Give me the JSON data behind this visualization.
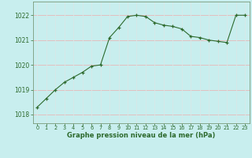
{
  "x": [
    0,
    1,
    2,
    3,
    4,
    5,
    6,
    7,
    8,
    9,
    10,
    11,
    12,
    13,
    14,
    15,
    16,
    17,
    18,
    19,
    20,
    21,
    22,
    23
  ],
  "y": [
    1018.3,
    1018.65,
    1019.0,
    1019.3,
    1019.5,
    1019.7,
    1019.95,
    1020.0,
    1021.1,
    1021.5,
    1021.95,
    1022.0,
    1021.95,
    1021.7,
    1021.6,
    1021.55,
    1021.45,
    1021.15,
    1021.1,
    1021.0,
    1020.95,
    1020.9,
    1022.0,
    1022.0
  ],
  "line_color": "#2d6a2d",
  "marker_color": "#2d6a2d",
  "bg_color": "#c8eeee",
  "grid_color_h": "#e8b8b8",
  "grid_color_v": "#d8e8e8",
  "xlabel": "Graphe pression niveau de la mer (hPa)",
  "xlabel_color": "#2d6a2d",
  "tick_color": "#2d6a2d",
  "spine_color": "#7a9a7a",
  "yticks": [
    1018,
    1019,
    1020,
    1021,
    1022
  ],
  "xticks": [
    0,
    1,
    2,
    3,
    4,
    5,
    6,
    7,
    8,
    9,
    10,
    11,
    12,
    13,
    14,
    15,
    16,
    17,
    18,
    19,
    20,
    21,
    22,
    23
  ],
  "ylim": [
    1017.65,
    1022.55
  ],
  "xlim": [
    -0.5,
    23.5
  ]
}
